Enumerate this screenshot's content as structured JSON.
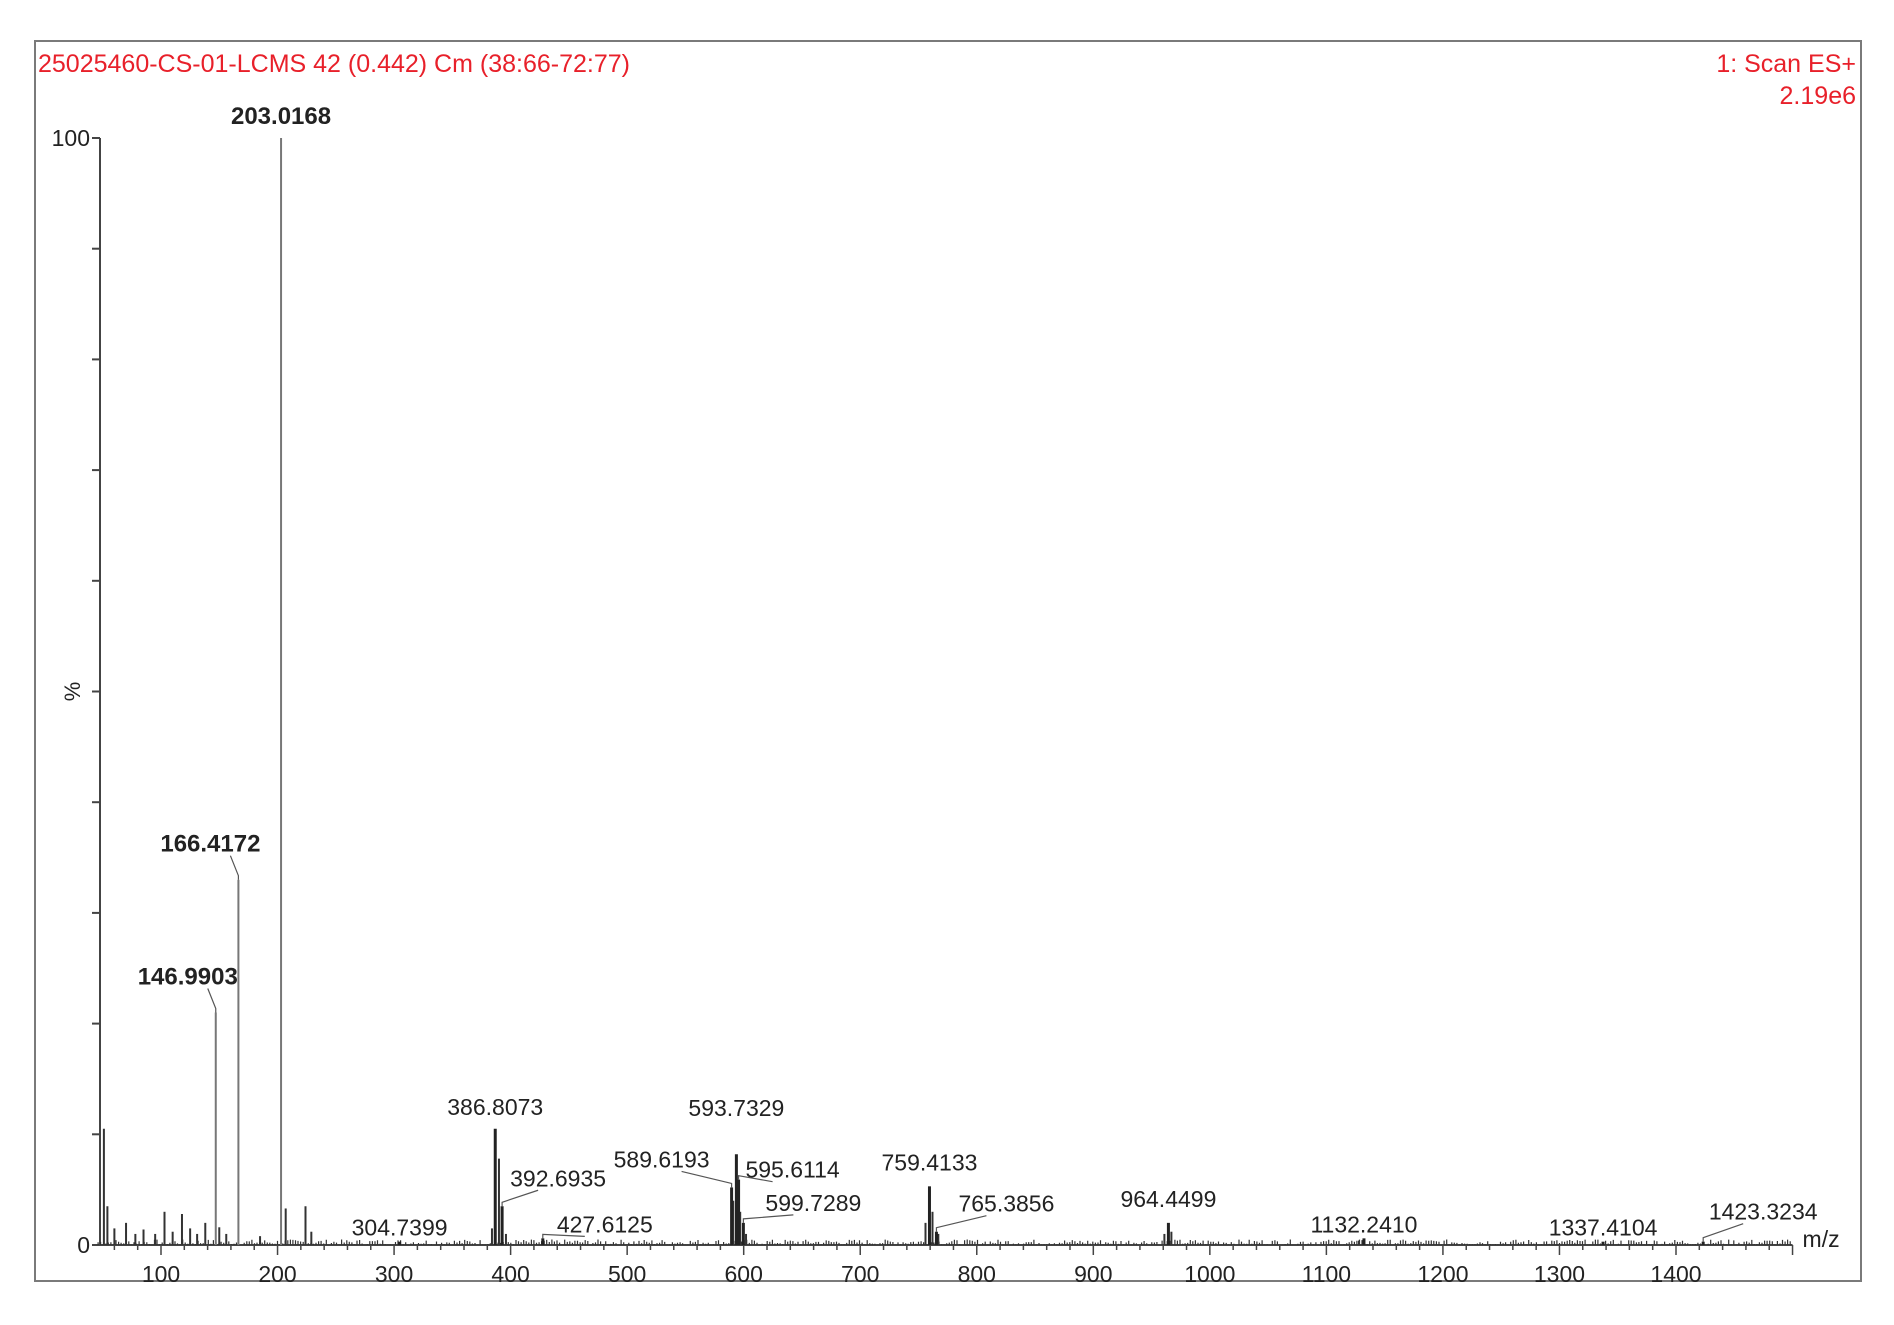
{
  "chart_data": {
    "type": "bar",
    "title": "25025460-CS-01-LCMS 42 (0.442) Cm (38:66-72:77)",
    "scan_label": "1: Scan ES+",
    "base_intensity": "2.19e6",
    "xlabel": "m/z",
    "ylabel": "%",
    "xlim": [
      45,
      1500
    ],
    "ylim": [
      0,
      100
    ],
    "x_ticks": [
      100,
      200,
      300,
      400,
      500,
      600,
      700,
      800,
      900,
      1000,
      1100,
      1200,
      1300,
      1400
    ],
    "y_tick_labels": [
      "0",
      "100"
    ],
    "peaks": [
      {
        "mz": 203.0168,
        "intensity": 100,
        "label": "203.0168",
        "bold": true
      },
      {
        "mz": 166.4172,
        "intensity": 33,
        "label": "166.4172",
        "bold": true
      },
      {
        "mz": 146.9903,
        "intensity": 21,
        "label": "146.9903",
        "bold": true
      },
      {
        "mz": 386.8073,
        "intensity": 10.5,
        "label": "386.8073",
        "bold": false
      },
      {
        "mz": 392.6935,
        "intensity": 3.5,
        "label": "392.6935",
        "bold": false
      },
      {
        "mz": 304.7399,
        "intensity": 0.3,
        "label": "304.7399",
        "bold": false
      },
      {
        "mz": 427.6125,
        "intensity": 0.6,
        "label": "427.6125",
        "bold": false
      },
      {
        "mz": 589.6193,
        "intensity": 5.2,
        "label": "589.6193",
        "bold": false
      },
      {
        "mz": 593.7329,
        "intensity": 8.2,
        "label": "593.7329",
        "bold": false
      },
      {
        "mz": 595.6114,
        "intensity": 5.9,
        "label": "595.6114",
        "bold": false
      },
      {
        "mz": 599.7289,
        "intensity": 2.0,
        "label": "599.7289",
        "bold": false
      },
      {
        "mz": 759.4133,
        "intensity": 5.3,
        "label": "759.4133",
        "bold": false
      },
      {
        "mz": 765.3856,
        "intensity": 1.2,
        "label": "765.3856",
        "bold": false
      },
      {
        "mz": 964.4499,
        "intensity": 2.0,
        "label": "964.4499",
        "bold": false
      },
      {
        "mz": 1132.241,
        "intensity": 0.6,
        "label": "1132.2410",
        "bold": false
      },
      {
        "mz": 1337.4104,
        "intensity": 0.3,
        "label": "1337.4104",
        "bold": false
      },
      {
        "mz": 1423.3234,
        "intensity": 0.3,
        "label": "1423.3234",
        "bold": false
      }
    ],
    "minor_peaks": [
      {
        "mz": 51,
        "intensity": 10.5
      },
      {
        "mz": 54,
        "intensity": 3.5
      },
      {
        "mz": 60,
        "intensity": 1.5
      },
      {
        "mz": 70,
        "intensity": 2.0
      },
      {
        "mz": 78,
        "intensity": 1.0
      },
      {
        "mz": 85,
        "intensity": 1.4
      },
      {
        "mz": 95,
        "intensity": 1.0
      },
      {
        "mz": 103,
        "intensity": 3.0
      },
      {
        "mz": 110,
        "intensity": 1.2
      },
      {
        "mz": 118,
        "intensity": 2.8
      },
      {
        "mz": 125,
        "intensity": 1.5
      },
      {
        "mz": 131,
        "intensity": 1.0
      },
      {
        "mz": 138,
        "intensity": 2.0
      },
      {
        "mz": 150,
        "intensity": 1.6
      },
      {
        "mz": 156,
        "intensity": 1.0
      },
      {
        "mz": 185,
        "intensity": 0.8
      },
      {
        "mz": 207,
        "intensity": 3.3
      },
      {
        "mz": 224,
        "intensity": 3.5
      },
      {
        "mz": 229,
        "intensity": 1.2
      },
      {
        "mz": 384,
        "intensity": 1.5
      },
      {
        "mz": 390,
        "intensity": 7.8
      },
      {
        "mz": 396,
        "intensity": 1.0
      },
      {
        "mz": 591,
        "intensity": 4.0
      },
      {
        "mz": 597,
        "intensity": 3.0
      },
      {
        "mz": 602,
        "intensity": 1.0
      },
      {
        "mz": 756,
        "intensity": 2.0
      },
      {
        "mz": 762,
        "intensity": 3.0
      },
      {
        "mz": 767,
        "intensity": 1.0
      },
      {
        "mz": 961,
        "intensity": 1.0
      },
      {
        "mz": 967,
        "intensity": 1.2
      },
      {
        "mz": 1128,
        "intensity": 0.4
      }
    ]
  }
}
